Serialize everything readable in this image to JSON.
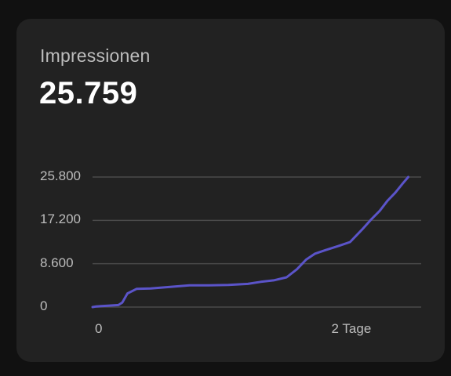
{
  "card": {
    "title": "Impressionen",
    "value": "25.759"
  },
  "colors": {
    "background": "#111111",
    "card": "#222222",
    "line": "#5b54c9",
    "grid": "#4a4a4a"
  },
  "chart_data": {
    "type": "line",
    "title": "",
    "xlabel": "",
    "ylabel": "",
    "ylim": [
      0,
      25800
    ],
    "yticks": [
      {
        "value": 0,
        "label": "0"
      },
      {
        "value": 8600,
        "label": "8.600"
      },
      {
        "value": 17200,
        "label": "17.200"
      },
      {
        "value": 25800,
        "label": "25.800"
      }
    ],
    "xlim": [
      0,
      2.54
    ],
    "xticks": [
      {
        "value": 0,
        "label": "0"
      },
      {
        "value": 2,
        "label": "2 Tage"
      }
    ],
    "grid": true,
    "series": [
      {
        "values": [
          [
            0,
            0
          ],
          [
            0.03,
            120
          ],
          [
            0.12,
            280
          ],
          [
            0.2,
            400
          ],
          [
            0.23,
            900
          ],
          [
            0.27,
            2700
          ],
          [
            0.34,
            3600
          ],
          [
            0.45,
            3700
          ],
          [
            0.6,
            4000
          ],
          [
            0.75,
            4300
          ],
          [
            0.9,
            4300
          ],
          [
            1.05,
            4400
          ],
          [
            1.2,
            4600
          ],
          [
            1.3,
            5000
          ],
          [
            1.4,
            5300
          ],
          [
            1.5,
            5900
          ],
          [
            1.58,
            7500
          ],
          [
            1.65,
            9400
          ],
          [
            1.72,
            10600
          ],
          [
            1.8,
            11300
          ],
          [
            1.9,
            12100
          ],
          [
            1.99,
            12900
          ],
          [
            2.08,
            15300
          ],
          [
            2.15,
            17300
          ],
          [
            2.22,
            19100
          ],
          [
            2.28,
            21100
          ],
          [
            2.34,
            22700
          ],
          [
            2.4,
            24600
          ],
          [
            2.44,
            25800
          ]
        ]
      }
    ]
  }
}
